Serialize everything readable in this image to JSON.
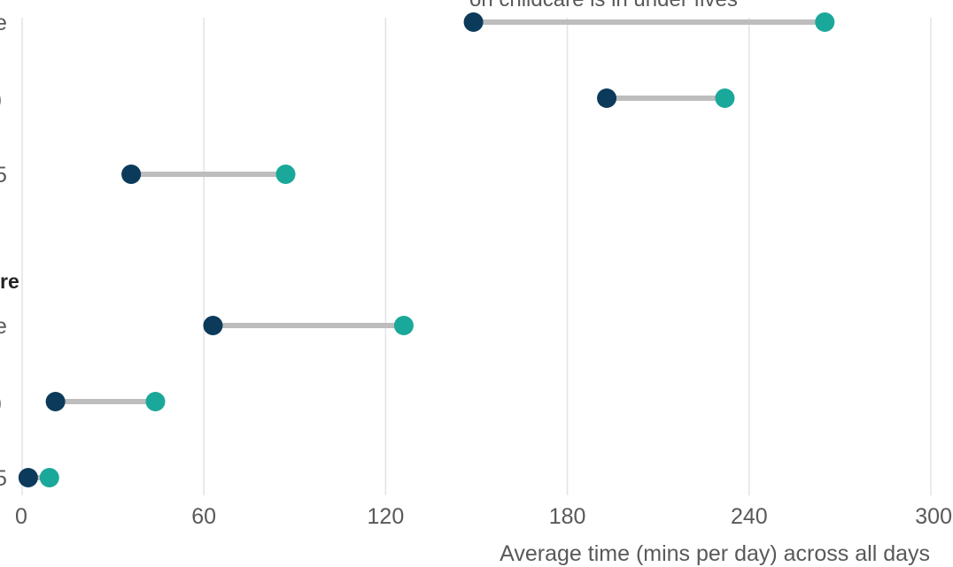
{
  "chart_data": {
    "type": "dumbbell",
    "xlabel": "Average time (mins per day) across all days",
    "xlim": [
      0,
      300
    ],
    "x_ticks": [
      0,
      60,
      120,
      180,
      240,
      300
    ],
    "grid": true,
    "annotation": "on childcare is in under fives",
    "groups": [
      {
        "label": "",
        "rows": [
          {
            "label": "e",
            "start": 149,
            "end": 265
          },
          {
            "label": ")",
            "start": 193,
            "end": 232
          },
          {
            "label": "5",
            "start": 36,
            "end": 87
          }
        ]
      },
      {
        "label": "re",
        "rows": [
          {
            "label": "e",
            "start": 63,
            "end": 126
          },
          {
            "label": ")",
            "start": 11,
            "end": 44
          },
          {
            "label": "5",
            "start": 2,
            "end": 9
          }
        ]
      }
    ],
    "colors": {
      "start": "#0b3a5b",
      "end": "#1aa89a",
      "connector": "#bdbdbd",
      "grid": "#e3e3e3"
    }
  }
}
